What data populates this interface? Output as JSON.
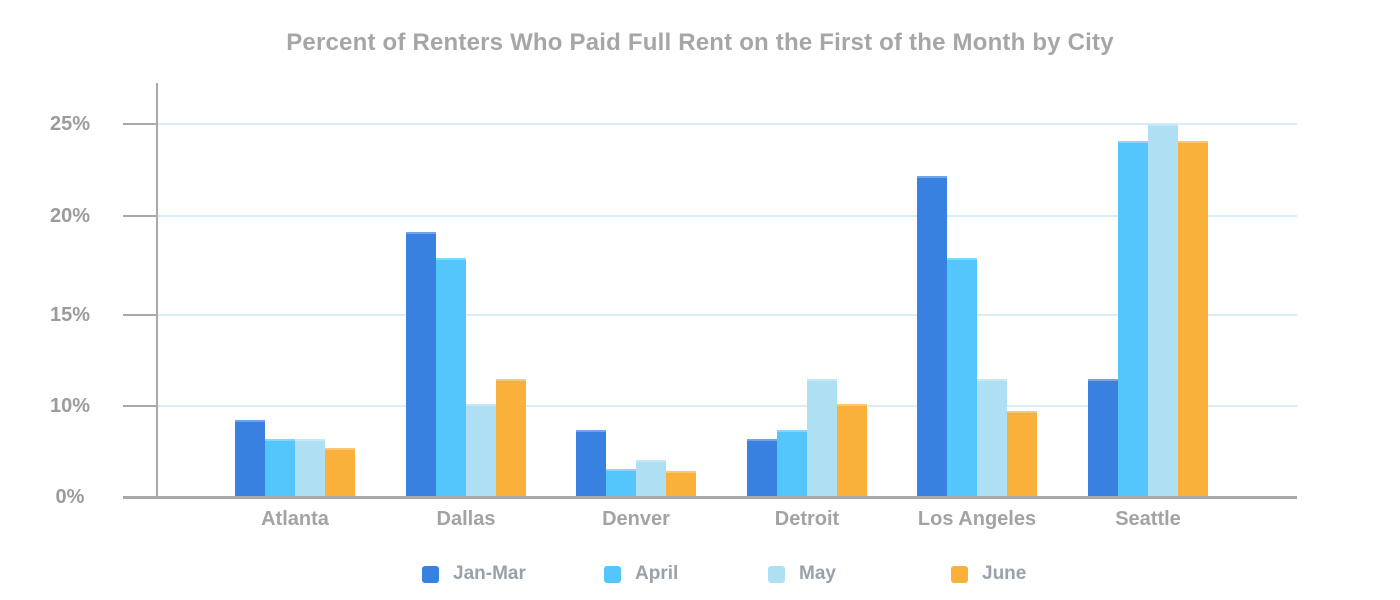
{
  "chart_data": {
    "type": "bar",
    "title": "Percent of Renters Who Paid Full Rent on the First of the Month by City",
    "categories": [
      "Atlanta",
      "Dallas",
      "Denver",
      "Detroit",
      "Los Angeles",
      "Seattle"
    ],
    "series": [
      {
        "name": "Jan-Mar",
        "color": "#3881E1",
        "values": [
          8.5,
          19.2,
          7.4,
          6.4,
          22.2,
          11.5
        ]
      },
      {
        "name": "April",
        "color": "#55C6FB",
        "values": [
          6.4,
          17.9,
          3.1,
          7.4,
          17.9,
          24.1
        ]
      },
      {
        "name": "May",
        "color": "#AEDFF2",
        "values": [
          6.4,
          10.1,
          4.1,
          11.5,
          11.5,
          25.0
        ]
      },
      {
        "name": "June",
        "color": "#F9B13B",
        "values": [
          5.4,
          11.5,
          2.9,
          10.1,
          9.5,
          24.1
        ]
      }
    ],
    "y_axis": {
      "tick_labels": [
        "0%",
        "10%",
        "15%",
        "20%",
        "25%"
      ],
      "tick_values": [
        0,
        10,
        15,
        20,
        25
      ],
      "range": [
        0,
        27
      ],
      "note": "tick spacing as rendered is non-linear: the 0-10 span equals each 5-point span above 10"
    },
    "x_axis": {
      "label": ""
    },
    "legend": {
      "position": "bottom",
      "entries": [
        "Jan-Mar",
        "April",
        "May",
        "June"
      ]
    },
    "grid": true,
    "styles": {
      "grid_color": "#d9edf8",
      "axis_color": "#a9a9a9",
      "title_color": "#a6a6a6",
      "tick_label_color": "#9b9b9b",
      "category_label_color": "#a3a3a3",
      "legend_label_color": "#9aa1a9"
    }
  }
}
